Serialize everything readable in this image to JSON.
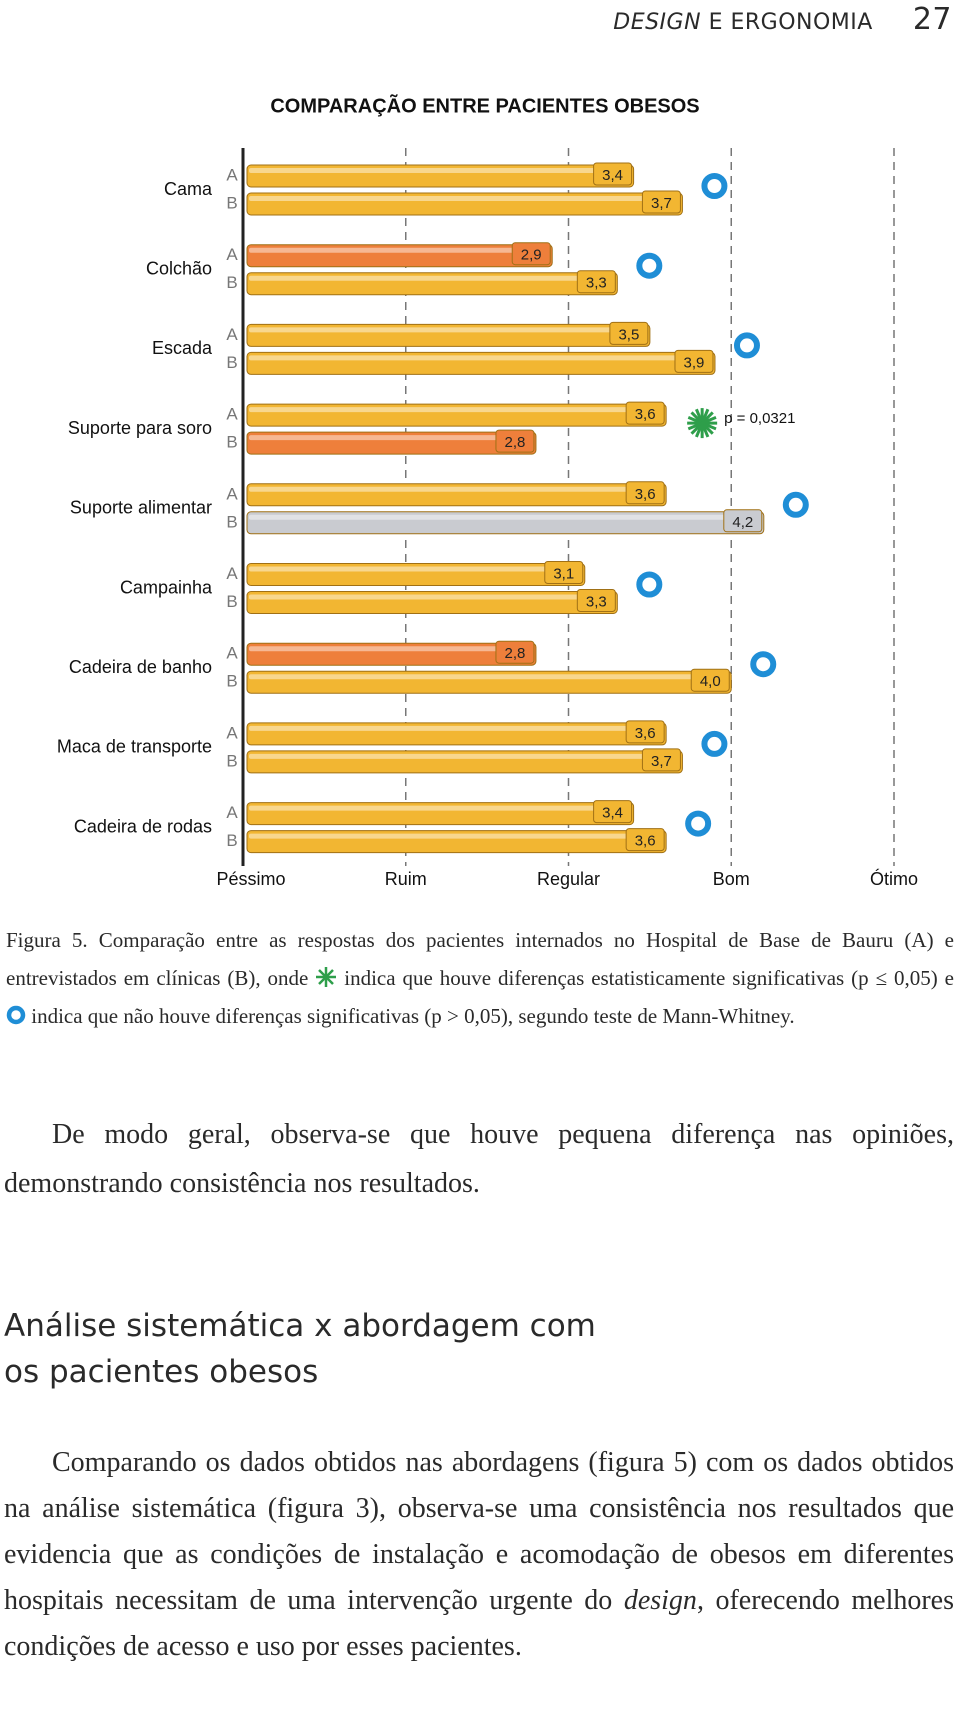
{
  "header": {
    "title_italic": "DESIGN",
    "title": "E ERGONOMIA",
    "page": "27"
  },
  "chart_data": {
    "type": "hbar",
    "title": "COMPARAÇÃO ENTRE PACIENTES OBESOS",
    "categories": [
      "Cama",
      "Colchão",
      "Escada",
      "Suporte para soro",
      "Suporte alimentar",
      "Campainha",
      "Cadeira de banho",
      "Maca de transporte",
      "Cadeira de rodas"
    ],
    "series": [
      {
        "name": "A",
        "values": [
          3.4,
          2.9,
          3.5,
          3.6,
          3.6,
          3.1,
          2.8,
          3.6,
          3.4
        ],
        "value_labels": [
          "3,4",
          "2,9",
          "3,5",
          "3,6",
          "3,6",
          "3,1",
          "2,8",
          "3,6",
          "3,4"
        ],
        "colors": [
          "#f2b632",
          "#ee7f3b",
          "#f2b632",
          "#f2b632",
          "#f2b632",
          "#f2b632",
          "#ee7f3b",
          "#f2b632",
          "#f2b632"
        ]
      },
      {
        "name": "B",
        "values": [
          3.7,
          3.3,
          3.9,
          2.8,
          4.2,
          3.3,
          4.0,
          3.7,
          3.6
        ],
        "value_labels": [
          "3,7",
          "3,3",
          "3,9",
          "2,8",
          "4,2",
          "3,3",
          "4,0",
          "3,7",
          "3,6"
        ],
        "colors": [
          "#f2b632",
          "#f2b632",
          "#f2b632",
          "#ee7f3b",
          "#c9cbd0",
          "#f2b632",
          "#f2b632",
          "#f2b632",
          "#f2b632"
        ]
      }
    ],
    "markers": [
      "circle",
      "circle",
      "circle",
      "star",
      "circle",
      "circle",
      "circle",
      "circle",
      "circle"
    ],
    "marker_colors": {
      "circle": "#1f8ed6",
      "star": "#2e9e4a"
    },
    "annotation": "p = 0,0321",
    "xlim": [
      1,
      5
    ],
    "xticks": [
      {
        "value": 1,
        "label": "Péssimo"
      },
      {
        "value": 2,
        "label": "Ruim"
      },
      {
        "value": 3,
        "label": "Regular"
      },
      {
        "value": 4,
        "label": "Bom"
      },
      {
        "value": 5,
        "label": "Ótimo"
      }
    ],
    "grid": true
  },
  "caption": {
    "part1": "Figura 5. Comparação entre as respostas dos pacientes internados no Hospital de Base de Bauru (A) e entrevistados em clínicas (B), onde",
    "part2": "indica que houve diferenças estatisticamente significativas (p ≤ 0,05) e",
    "part3": "indica que não houve diferenças significativas (p > 0,05), segundo teste de Mann-Whitney."
  },
  "paragraph1": "De modo geral, observa-se que houve pequena diferença nas opiniões, demonstrando consistência nos resultados.",
  "heading": [
    "Análise sistemática x abordagem com",
    "os pacientes obesos"
  ],
  "paragraph2": {
    "part1": "Comparando os dados obtidos nas abordagens (figura 5) com os dados obtidos na análise sistemática (figura 3), observa-se uma consistência nos resultados que evidencia que as condições de instalação e acomodação de obesos em diferentes hospitais necessitam de uma intervenção urgente do",
    "italic": "design",
    "part2": ", oferecendo melhores condições de acesso e uso por esses pacientes."
  }
}
